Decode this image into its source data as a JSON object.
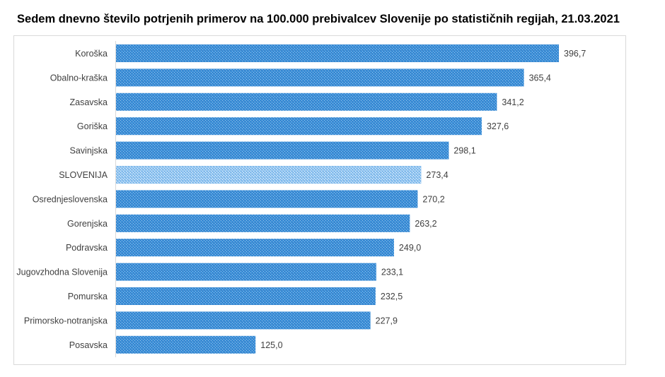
{
  "chart_data": {
    "type": "bar",
    "orientation": "horizontal",
    "title": "Sedem dnevno število potrjenih primerov na 100.000 prebivalcev Slovenije po statističnih regijah, 21.03.2021",
    "categories": [
      "Koroška",
      "Obalno-kraška",
      "Zasavska",
      "Goriška",
      "Savinjska",
      "SLOVENIJA",
      "Osrednjeslovenska",
      "Gorenjska",
      "Podravska",
      "Jugovzhodna Slovenija",
      "Pomurska",
      "Primorsko-notranjska",
      "Posavska"
    ],
    "values": [
      396.7,
      365.4,
      341.2,
      327.6,
      298.1,
      273.4,
      270.2,
      263.2,
      249.0,
      233.1,
      232.5,
      227.9,
      125.0
    ],
    "value_labels": [
      "396,7",
      "365,4",
      "341,2",
      "327,6",
      "298,1",
      "273,4",
      "270,2",
      "263,2",
      "249,0",
      "233,1",
      "232,5",
      "227,9",
      "125,0"
    ],
    "highlight": "SLOVENIJA",
    "xlim": [
      0,
      396.7
    ],
    "grid": false,
    "colors": {
      "bar": "#3a8dd6",
      "bar_dots": "#9cc6ee",
      "highlight_bar": "#8ec2ef",
      "highlight_dots": "#ffffff"
    }
  }
}
